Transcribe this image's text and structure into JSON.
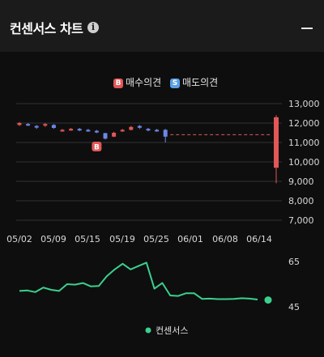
{
  "header": {
    "title": "컨센서스 차트"
  },
  "legend": {
    "buy_badge": "B",
    "buy_label": "매수의견",
    "sell_badge": "S",
    "sell_label": "매도의견",
    "marker_label": "B"
  },
  "colors": {
    "up": "#e25757",
    "down": "#6f86e8",
    "consensus": "#3ccf8e",
    "grid": "#333333"
  },
  "chart_data": [
    {
      "type": "candlestick",
      "y_ticks": [
        "13,000",
        "12,000",
        "11,000",
        "10,000",
        "9,000",
        "8,000",
        "7,000"
      ],
      "y_tick_values": [
        13000,
        12000,
        11000,
        10000,
        9000,
        8000,
        7000
      ],
      "ylim": [
        7000,
        13000
      ],
      "x_ticks": [
        "05/02",
        "05/09",
        "05/15",
        "05/19",
        "05/25",
        "06/01",
        "06/08",
        "06/14"
      ],
      "candles": [
        {
          "open": 11900,
          "close": 12000,
          "high": 12050,
          "low": 11850
        },
        {
          "open": 11950,
          "close": 11880,
          "high": 12000,
          "low": 11850
        },
        {
          "open": 11850,
          "close": 11780,
          "high": 11900,
          "low": 11700
        },
        {
          "open": 11880,
          "close": 11950,
          "high": 12000,
          "low": 11800
        },
        {
          "open": 11900,
          "close": 11750,
          "high": 11950,
          "low": 11700
        },
        {
          "open": 11600,
          "close": 11650,
          "high": 11700,
          "low": 11550
        },
        {
          "open": 11650,
          "close": 11700,
          "high": 11750,
          "low": 11600
        },
        {
          "open": 11700,
          "close": 11620,
          "high": 11750,
          "low": 11580
        },
        {
          "open": 11650,
          "close": 11580,
          "high": 11700,
          "low": 11550
        },
        {
          "open": 11600,
          "close": 11520,
          "high": 11650,
          "low": 11480
        },
        {
          "open": 11480,
          "close": 11200,
          "high": 11500,
          "low": 11150
        },
        {
          "open": 11300,
          "close": 11500,
          "high": 11550,
          "low": 11280
        },
        {
          "open": 11600,
          "close": 11650,
          "high": 11700,
          "low": 11550
        },
        {
          "open": 11650,
          "close": 11800,
          "high": 11850,
          "low": 11620
        },
        {
          "open": 11850,
          "close": 11760,
          "high": 11900,
          "low": 11700
        },
        {
          "open": 11700,
          "close": 11620,
          "high": 11750,
          "low": 11580
        },
        {
          "open": 11650,
          "close": 11580,
          "high": 11700,
          "low": 11550
        },
        {
          "open": 11650,
          "close": 11300,
          "high": 11700,
          "low": 11000
        }
      ],
      "projection_value": 11400,
      "last_candle": {
        "open": 12300,
        "close": 9700,
        "high": 12400,
        "low": 8900
      },
      "buy_marker_value": 11000
    },
    {
      "type": "line",
      "name": "컨센서스",
      "y_ticks": [
        "65",
        "45"
      ],
      "ylim": [
        45,
        65
      ],
      "values": [
        52,
        52.2,
        51.5,
        53.5,
        52.5,
        52,
        55,
        54.8,
        55.5,
        54,
        54.2,
        58.5,
        61.5,
        64,
        61.5,
        63,
        64.5,
        53,
        55.5,
        50,
        49.8,
        51,
        51,
        48.5,
        48.6,
        48.4,
        48.4,
        48.5,
        48.8,
        48.6,
        48.2
      ],
      "last_value": 48
    }
  ]
}
